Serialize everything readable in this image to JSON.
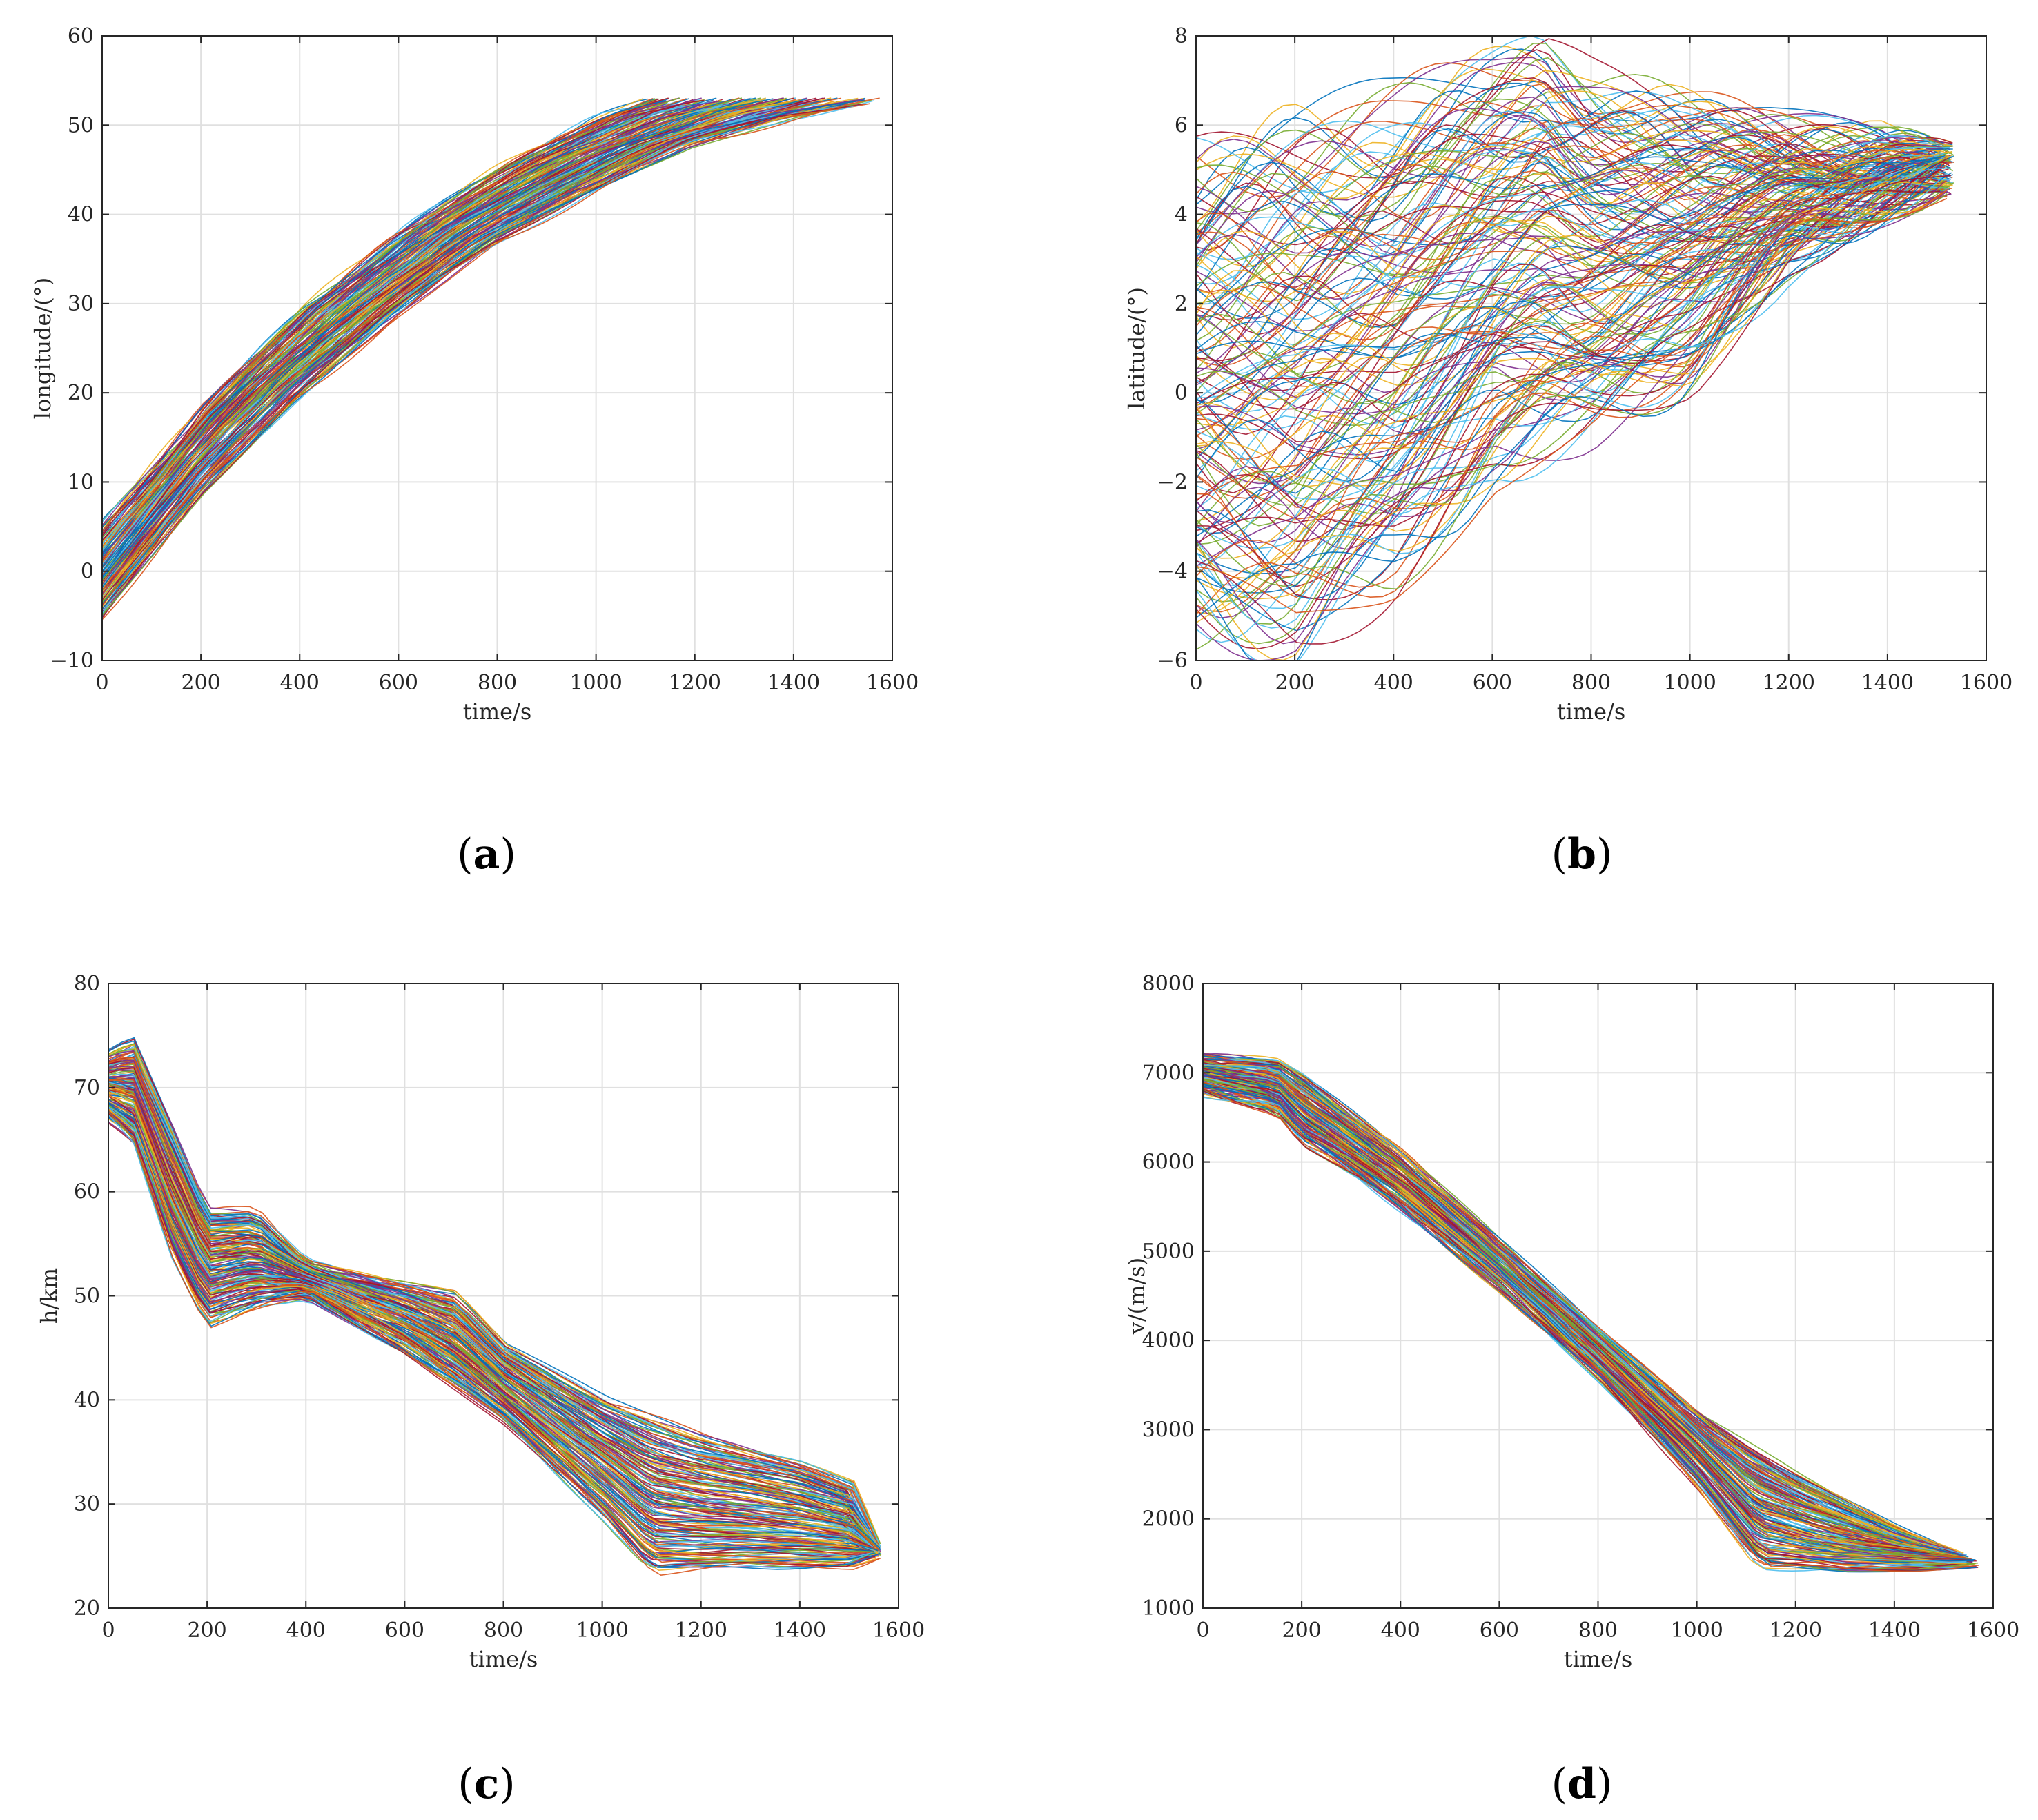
{
  "chart_data": [
    {
      "id": "a",
      "type": "line",
      "caption_letter": "a",
      "xlabel": "time/s",
      "ylabel": "longitude/(°)",
      "xlim": [
        0,
        1600
      ],
      "ylim": [
        -10,
        60
      ],
      "xticks": [
        0,
        200,
        400,
        600,
        800,
        1000,
        1200,
        1400,
        1600
      ],
      "yticks": [
        -10,
        0,
        10,
        20,
        30,
        40,
        50,
        60
      ],
      "grid": true,
      "series_description": "hundreds of overlapping multicolored trajectories",
      "envelope": {
        "upper": {
          "x": [
            0,
            200,
            400,
            600,
            800,
            1000,
            1100
          ],
          "y": [
            5,
            18,
            29,
            38,
            45,
            51,
            52.7
          ]
        },
        "lower": {
          "x": [
            0,
            200,
            400,
            600,
            800,
            1000,
            1200,
            1400,
            1560
          ],
          "y": [
            -5,
            9,
            20,
            29,
            37,
            43,
            48,
            51,
            52.7
          ]
        }
      }
    },
    {
      "id": "b",
      "type": "line",
      "caption_letter": "b",
      "xlabel": "time/s",
      "ylabel": "latitude/(°)",
      "xlim": [
        0,
        1600
      ],
      "ylim": [
        -6,
        8
      ],
      "xticks": [
        0,
        200,
        400,
        600,
        800,
        1000,
        1200,
        1400,
        1600
      ],
      "yticks": [
        -6,
        -4,
        -2,
        0,
        2,
        4,
        6,
        8
      ],
      "grid": true,
      "series_description": "hundreds of overlapping multicolored trajectories",
      "envelope": {
        "upper": {
          "x": [
            0,
            200,
            400,
            600,
            700,
            800,
            1000,
            1200,
            1400,
            1520
          ],
          "y": [
            5,
            5.6,
            6.2,
            7.0,
            7.7,
            7.0,
            6.2,
            5.8,
            5.6,
            5.2
          ]
        },
        "lower": {
          "x": [
            0,
            200,
            400,
            600,
            800,
            1000,
            1200,
            1400,
            1520
          ],
          "y": [
            -5,
            -5.4,
            -4.0,
            -1.5,
            -0.8,
            0.5,
            3.0,
            4.2,
            4.8
          ]
        }
      }
    },
    {
      "id": "c",
      "type": "line",
      "caption_letter": "c",
      "xlabel": "time/s",
      "ylabel": "h/km",
      "xlim": [
        0,
        1600
      ],
      "ylim": [
        20,
        80
      ],
      "xticks": [
        0,
        200,
        400,
        600,
        800,
        1000,
        1200,
        1400,
        1600
      ],
      "yticks": [
        20,
        30,
        40,
        50,
        60,
        70,
        80
      ],
      "grid": true,
      "series_description": "hundreds of overlapping multicolored trajectories",
      "envelope": {
        "upper": {
          "x": [
            0,
            50,
            130,
            200,
            300,
            400,
            600,
            700,
            800,
            1000,
            1200,
            1400,
            1500,
            1550
          ],
          "y": [
            73,
            74.5,
            66,
            58,
            58,
            53,
            51,
            50,
            45,
            40,
            36.5,
            34,
            32,
            26
          ]
        },
        "lower": {
          "x": [
            0,
            50,
            130,
            200,
            300,
            400,
            600,
            800,
            1000,
            1100,
            1300,
            1500,
            1550
          ],
          "y": [
            67,
            65,
            54,
            47.5,
            49,
            50,
            45,
            38,
            29,
            23.5,
            24,
            24,
            25
          ]
        }
      }
    },
    {
      "id": "d",
      "type": "line",
      "caption_letter": "d",
      "xlabel": "time/s",
      "ylabel": "v/(m/s)",
      "xlim": [
        0,
        1600
      ],
      "ylim": [
        1000,
        8000
      ],
      "xticks": [
        0,
        200,
        400,
        600,
        800,
        1000,
        1200,
        1400,
        1600
      ],
      "yticks": [
        1000,
        2000,
        3000,
        4000,
        5000,
        6000,
        7000,
        8000
      ],
      "grid": true,
      "series_description": "hundreds of overlapping multicolored trajectories",
      "envelope": {
        "upper": {
          "x": [
            0,
            150,
            200,
            400,
            600,
            800,
            1000,
            1200,
            1400,
            1520
          ],
          "y": [
            7150,
            7100,
            6950,
            6100,
            5100,
            4100,
            3200,
            2500,
            1900,
            1600
          ]
        },
        "lower": {
          "x": [
            0,
            150,
            200,
            300,
            400,
            600,
            800,
            1000,
            1130,
            1300,
            1560
          ],
          "y": [
            6800,
            6600,
            6250,
            5900,
            5500,
            4600,
            3600,
            2400,
            1450,
            1420,
            1480
          ]
        }
      }
    }
  ],
  "palette": [
    "#0072bd",
    "#d95319",
    "#edb120",
    "#7e2f8e",
    "#77ac30",
    "#4dbeee",
    "#a2142f"
  ]
}
